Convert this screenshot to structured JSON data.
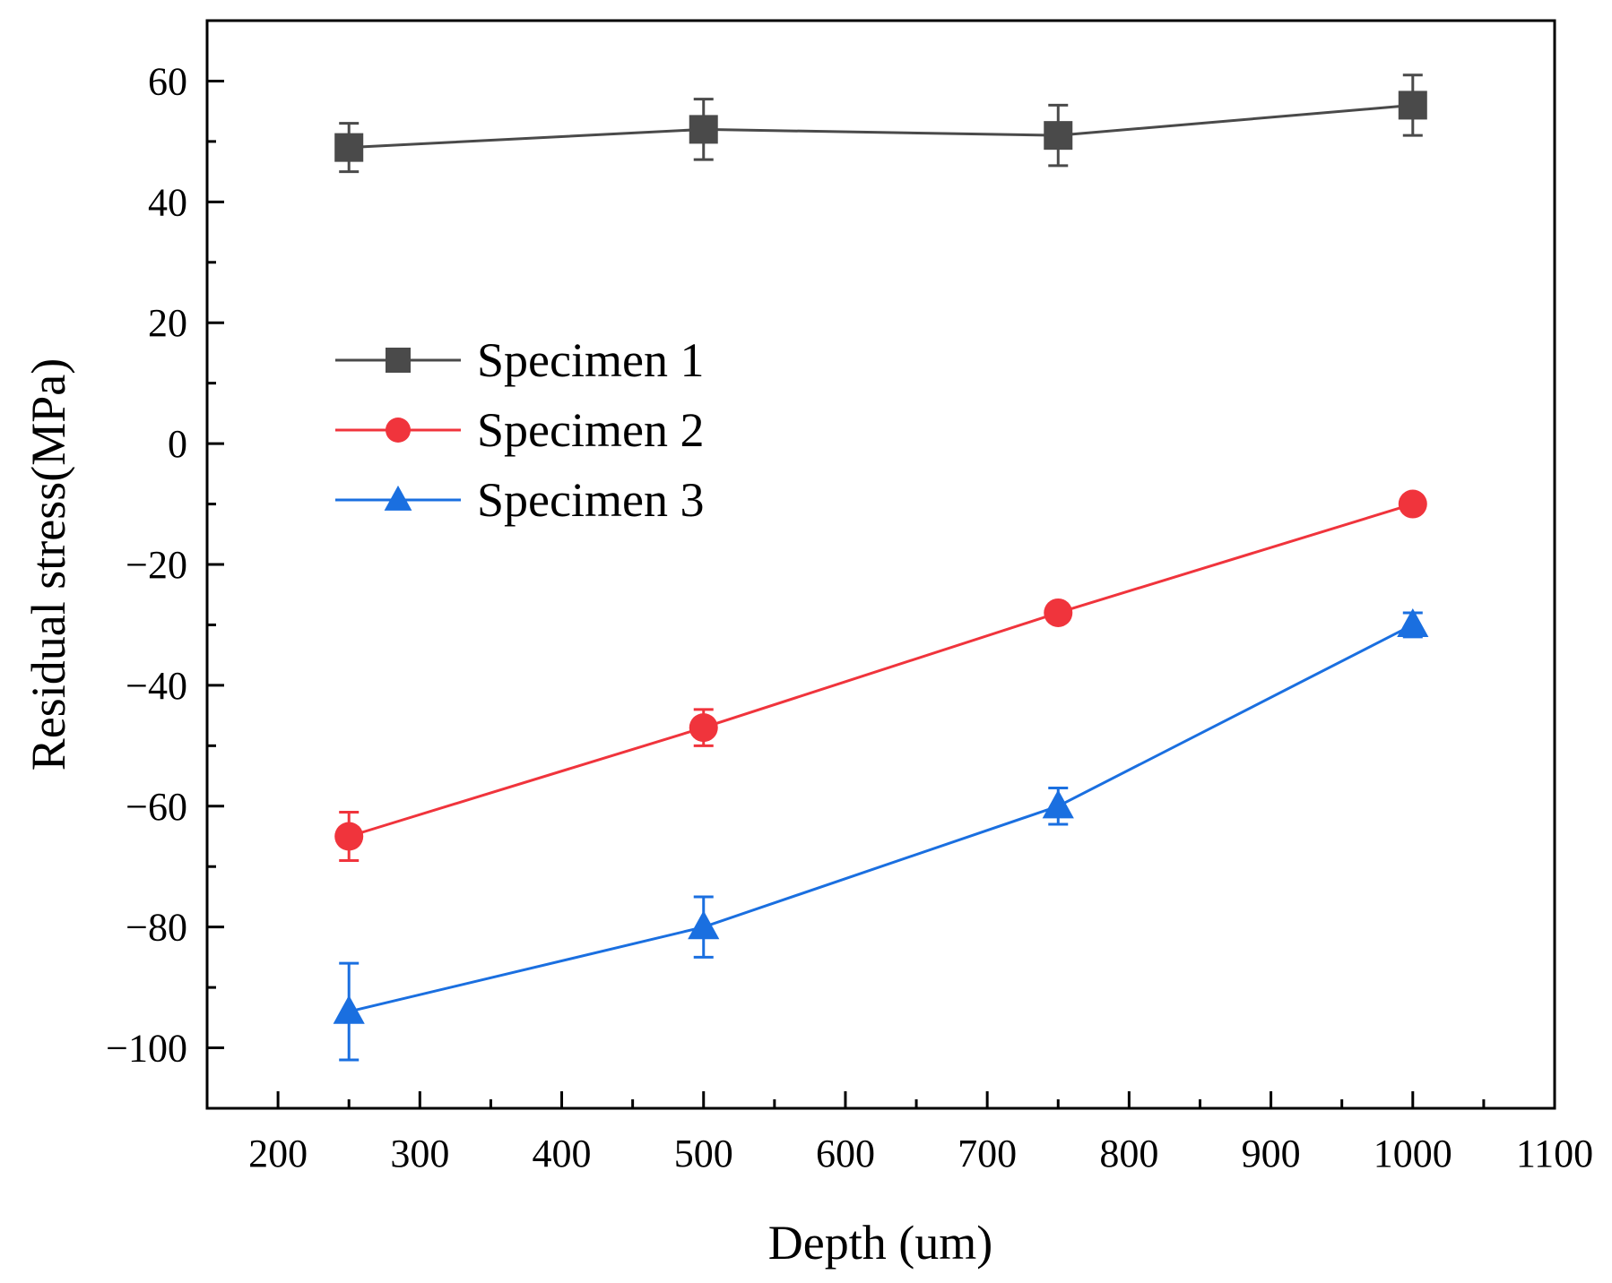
{
  "chart_data": {
    "type": "line",
    "title": "",
    "xlabel": "Depth (um)",
    "ylabel": "Residual stress(MPa)",
    "xlim": [
      150,
      1100
    ],
    "ylim": [
      -110,
      70
    ],
    "x_ticks": [
      200,
      300,
      400,
      500,
      600,
      700,
      800,
      900,
      1000,
      1100
    ],
    "y_ticks": [
      -100,
      -80,
      -60,
      -40,
      -20,
      0,
      20,
      40,
      60
    ],
    "x_tick_labels": [
      "200",
      "300",
      "400",
      "500",
      "600",
      "700",
      "800",
      "900",
      "1000",
      "1100"
    ],
    "y_tick_labels": [
      "−100",
      "−80",
      "−60",
      "−40",
      "−20",
      "0",
      "20",
      "40",
      "60"
    ],
    "grid": false,
    "legend_position": "center-left",
    "x": [
      250,
      500,
      750,
      1000
    ],
    "series": [
      {
        "name": "Specimen 1",
        "marker": "square",
        "color": "#4a4a4a",
        "values": [
          49,
          52,
          51,
          56
        ],
        "errors": [
          4,
          5,
          5,
          5
        ]
      },
      {
        "name": "Specimen 2",
        "marker": "circle",
        "color": "#f0343c",
        "values": [
          -65,
          -47,
          -28,
          -10
        ],
        "errors": [
          4,
          3,
          1.5,
          1
        ]
      },
      {
        "name": "Specimen 3",
        "marker": "triangle",
        "color": "#1a6fe0",
        "values": [
          -94,
          -80,
          -60,
          -30
        ],
        "errors": [
          8,
          5,
          3,
          2
        ]
      }
    ]
  }
}
